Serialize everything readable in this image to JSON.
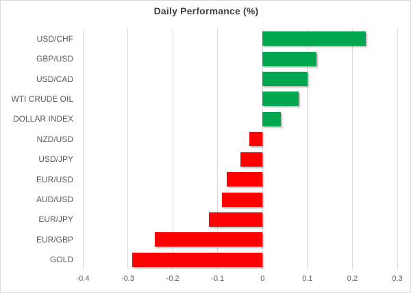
{
  "chart_data": {
    "type": "bar",
    "orientation": "horizontal",
    "title": "Daily Performance (%)",
    "categories": [
      "USD/CHF",
      "GBP/USD",
      "USD/CAD",
      "WTI CRUDE OIL",
      "DOLLAR INDEX",
      "NZD/USD",
      "USD/JPY",
      "EUR/USD",
      "AUD/USD",
      "EUR/JPY",
      "EUR/GBP",
      "GOLD"
    ],
    "values": [
      0.23,
      0.12,
      0.1,
      0.08,
      0.04,
      -0.03,
      -0.05,
      -0.08,
      -0.09,
      -0.12,
      -0.24,
      -0.29
    ],
    "xlabel": "",
    "ylabel": "",
    "xlim": [
      -0.4,
      0.3
    ],
    "x_ticks": [
      -0.4,
      -0.3,
      -0.2,
      -0.1,
      0,
      0.1,
      0.2,
      0.3
    ],
    "x_tick_labels": [
      "-0.4",
      "-0.3",
      "-0.2",
      "-0.1",
      "0",
      "0.1",
      "0.2",
      "0.3"
    ],
    "grid": "vertical-on",
    "legend": "none",
    "colors": {
      "positive": "#00A650",
      "negative": "#FF0000",
      "gridline": "#D9D9D9",
      "axis_text": "#595959",
      "title_text": "#404040",
      "frame_border": "#D9D9D9",
      "background": "#FFFFFF"
    }
  }
}
